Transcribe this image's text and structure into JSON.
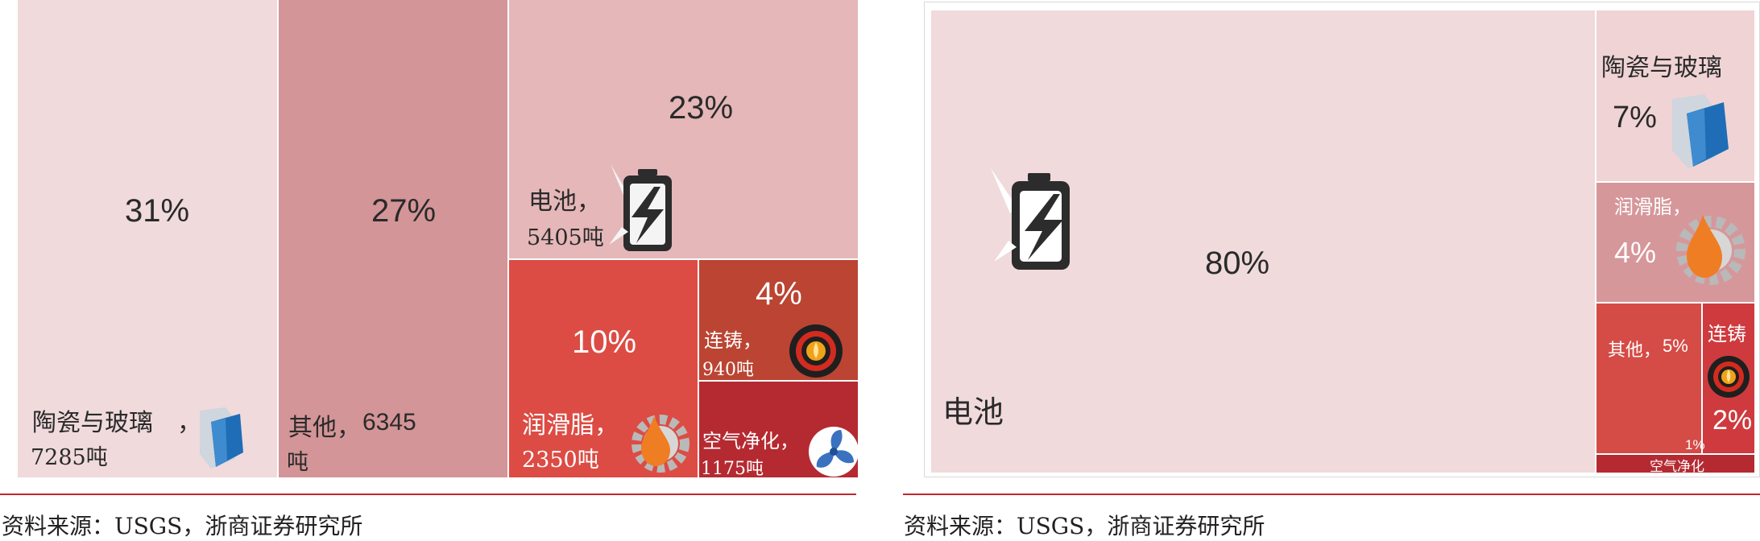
{
  "chart_data": [
    {
      "type": "treemap",
      "tiles": [
        {
          "category": "陶瓷与玻璃",
          "pct_label": "31%",
          "value_label": "7285吨",
          "percent": 31,
          "tonnes": 7285,
          "color": "#f0dadb"
        },
        {
          "category": "其他",
          "pct_label": "27%",
          "value_label": "6345",
          "value_unit": "吨",
          "percent": 27,
          "tonnes": 6345,
          "color": "#d39597"
        },
        {
          "category": "电池",
          "pct_label": "23%",
          "value_label": "5405吨",
          "percent": 23,
          "tonnes": 5405,
          "color": "#e5b7b9"
        },
        {
          "category": "润滑脂",
          "pct_label": "10%",
          "value_label": "2350吨",
          "percent": 10,
          "tonnes": 2350,
          "color": "#dc4c44"
        },
        {
          "category": "连铸",
          "pct_label": "4%",
          "value_label": "940吨",
          "percent": 4,
          "tonnes": 940,
          "color": "#bb4433"
        },
        {
          "category": "空气净化",
          "value_label": "1175吨",
          "tonnes": 1175,
          "color": "#b52a31"
        }
      ]
    },
    {
      "type": "treemap",
      "tiles": [
        {
          "category": "电池",
          "pct_label": "80%",
          "percent": 80,
          "color": "#f0dadb"
        },
        {
          "category": "陶瓷与玻璃",
          "pct_label": "7%",
          "percent": 7,
          "color": "#f0d3d4"
        },
        {
          "category": "润滑脂",
          "pct_label": "4%",
          "percent": 4,
          "color": "#d6979a"
        },
        {
          "category": "其他",
          "pct_label": "5%",
          "percent": 5,
          "color": "#d54b45"
        },
        {
          "category": "连铸",
          "pct_label": "2%",
          "percent": 2,
          "color": "#cf3a3e"
        },
        {
          "category": "空气净化",
          "pct_label": "1%",
          "percent": 1,
          "color": "#b52a31"
        }
      ]
    }
  ],
  "sources": [
    "资料来源：USGS，浙商证券研究所",
    "资料来源：USGS，浙商证券研究所"
  ],
  "icons": [
    "glass-pane-icon",
    "battery-icon",
    "oil-drop-gear-icon",
    "furnace-icon",
    "fan-icon"
  ],
  "colors": {
    "rule": "#c0282d"
  }
}
